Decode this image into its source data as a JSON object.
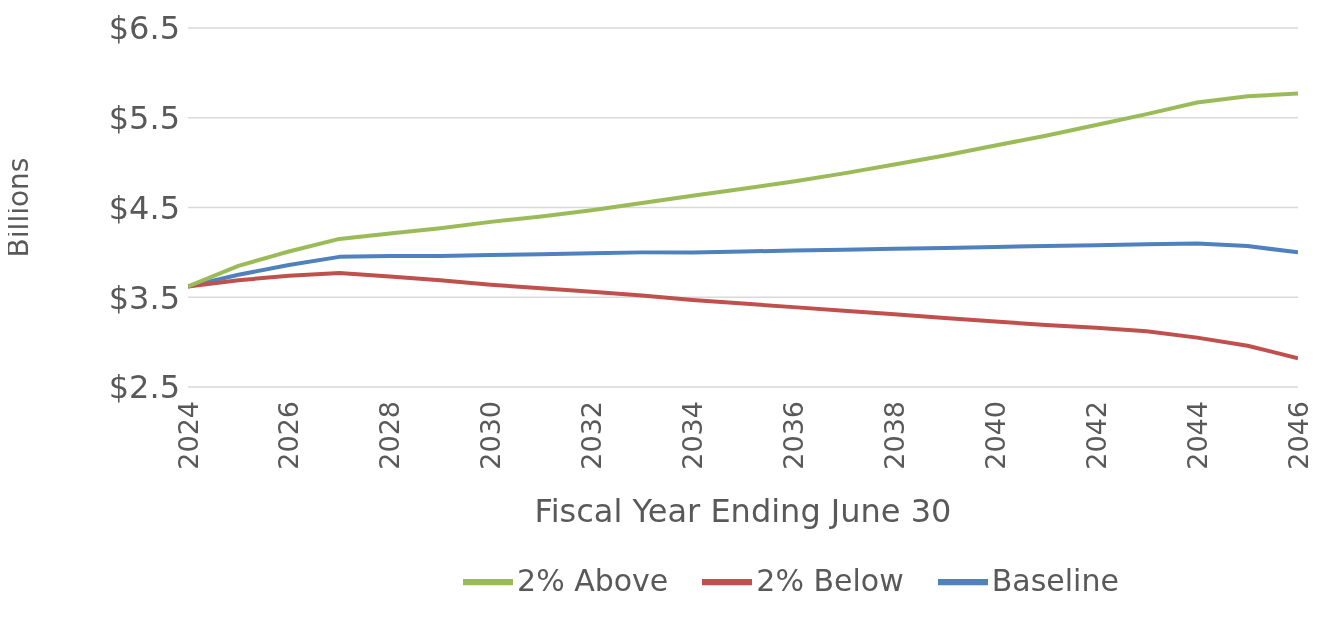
{
  "chart_data": {
    "type": "line",
    "xlabel": "Fiscal Year Ending June 30",
    "ylabel": "Billions",
    "x": [
      2024,
      2025,
      2026,
      2027,
      2028,
      2029,
      2030,
      2031,
      2032,
      2033,
      2034,
      2035,
      2036,
      2037,
      2038,
      2039,
      2040,
      2041,
      2042,
      2043,
      2044,
      2045,
      2046
    ],
    "series": [
      {
        "name": "Baseline",
        "color": "#4f81bd",
        "values": [
          3.62,
          3.75,
          3.86,
          3.95,
          3.96,
          3.96,
          3.97,
          3.98,
          3.99,
          4.0,
          4.0,
          4.01,
          4.02,
          4.03,
          4.04,
          4.05,
          4.06,
          4.07,
          4.08,
          4.09,
          4.1,
          4.07,
          4.0
        ]
      },
      {
        "name": "2% Below",
        "color": "#c0504d",
        "values": [
          3.62,
          3.69,
          3.74,
          3.77,
          3.73,
          3.69,
          3.64,
          3.6,
          3.56,
          3.52,
          3.47,
          3.43,
          3.39,
          3.35,
          3.31,
          3.27,
          3.23,
          3.19,
          3.16,
          3.12,
          3.05,
          2.96,
          2.82
        ]
      },
      {
        "name": "2% Above",
        "color": "#9bbb59",
        "values": [
          3.62,
          3.85,
          4.01,
          4.15,
          4.21,
          4.27,
          4.34,
          4.4,
          4.47,
          4.55,
          4.63,
          4.71,
          4.79,
          4.88,
          4.98,
          5.08,
          5.19,
          5.3,
          5.42,
          5.54,
          5.67,
          5.74,
          5.77
        ]
      }
    ],
    "xlim": [
      2024,
      2046
    ],
    "xticks": [
      2024,
      2026,
      2028,
      2030,
      2032,
      2034,
      2036,
      2038,
      2040,
      2042,
      2044,
      2046
    ],
    "ylim": [
      2.5,
      6.5
    ],
    "yticks": [
      {
        "value": 2.5,
        "label": "$2.5"
      },
      {
        "value": 3.5,
        "label": "$3.5"
      },
      {
        "value": 4.5,
        "label": "$4.5"
      },
      {
        "value": 5.5,
        "label": "$5.5"
      },
      {
        "value": 6.5,
        "label": "$6.5"
      }
    ],
    "grid": "y",
    "legend": "bottom",
    "marker": "none",
    "line_style": "solid"
  }
}
